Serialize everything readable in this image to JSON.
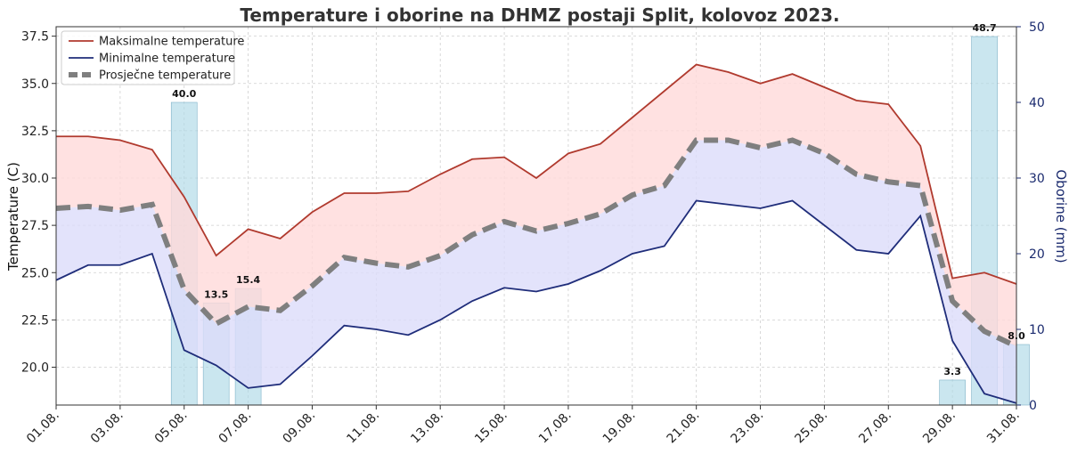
{
  "chart_data": {
    "type": "line",
    "title": "Temperature i oborine na DHMZ postaji Split, kolovoz 2023.",
    "ylabel": "Temperature (C)",
    "y2label": "Oborine (mm)",
    "ylim": [
      18.0,
      38.0
    ],
    "y2lim": [
      0,
      50
    ],
    "yticks": [
      20.0,
      22.5,
      25.0,
      27.5,
      30.0,
      32.5,
      35.0,
      37.5
    ],
    "yticks_labels": [
      "20.0",
      "22.5",
      "25.0",
      "27.5",
      "30.0",
      "32.5",
      "35.0",
      "37.5"
    ],
    "y2ticks": [
      0,
      10,
      20,
      30,
      40,
      50
    ],
    "y2ticks_labels": [
      "0",
      "10",
      "20",
      "30",
      "40",
      "50"
    ],
    "x": [
      1,
      2,
      3,
      4,
      5,
      6,
      7,
      8,
      9,
      10,
      11,
      12,
      13,
      14,
      15,
      16,
      17,
      18,
      19,
      20,
      21,
      22,
      23,
      24,
      25,
      26,
      27,
      28,
      29,
      30,
      31
    ],
    "xtick_values": [
      1,
      3,
      5,
      7,
      9,
      11,
      13,
      15,
      17,
      19,
      21,
      23,
      25,
      27,
      29,
      31
    ],
    "xtick_labels": [
      "01.08.",
      "03.08.",
      "05.08.",
      "07.08.",
      "09.08.",
      "11.08.",
      "13.08.",
      "15.08.",
      "17.08.",
      "19.08.",
      "21.08.",
      "23.08.",
      "25.08.",
      "27.08.",
      "29.08.",
      "31.08."
    ],
    "grid": true,
    "legend_position": "top-left",
    "series": [
      {
        "name": "Maksimalne temperature",
        "color": "#b03a2e",
        "values": [
          32.2,
          32.2,
          32.0,
          31.5,
          29.0,
          25.9,
          27.3,
          26.8,
          28.2,
          29.2,
          29.2,
          29.3,
          30.2,
          31.0,
          31.1,
          30.0,
          31.3,
          31.8,
          33.2,
          34.6,
          36.0,
          35.6,
          35.0,
          35.5,
          34.8,
          34.1,
          33.9,
          31.7,
          24.7,
          25.0,
          24.4
        ]
      },
      {
        "name": "Minimalne temperature",
        "color": "#1f2d7a",
        "values": [
          24.6,
          25.4,
          25.4,
          26.0,
          20.9,
          20.1,
          18.9,
          19.1,
          20.6,
          22.2,
          22.0,
          21.7,
          22.5,
          23.5,
          24.2,
          24.0,
          24.4,
          25.1,
          26.0,
          26.4,
          28.8,
          28.6,
          28.4,
          28.8,
          27.5,
          26.2,
          26.0,
          28.0,
          21.4,
          18.6,
          18.1
        ]
      },
      {
        "name": "Prosječne temperature",
        "color": "#7f7f7f",
        "values": [
          28.4,
          28.5,
          28.3,
          28.6,
          24.1,
          22.3,
          23.2,
          23.0,
          24.3,
          25.8,
          25.5,
          25.3,
          25.9,
          27.0,
          27.7,
          27.2,
          27.6,
          28.1,
          29.1,
          29.6,
          32.0,
          32.0,
          31.6,
          32.0,
          31.3,
          30.2,
          29.8,
          29.6,
          23.5,
          21.9,
          21.1
        ]
      }
    ],
    "precipitation": {
      "color": "#add8e6",
      "bars": [
        {
          "day": 5,
          "value": 40.0,
          "label": "40.0"
        },
        {
          "day": 6,
          "value": 13.5,
          "label": "13.5"
        },
        {
          "day": 7,
          "value": 15.4,
          "label": "15.4"
        },
        {
          "day": 29,
          "value": 3.3,
          "label": "3.3"
        },
        {
          "day": 30,
          "value": 48.7,
          "label": "48.7"
        },
        {
          "day": 31,
          "value": 8.0,
          "label": "8.0"
        }
      ]
    },
    "fill_colors": {
      "upper_band": "#ffd9d9",
      "lower_band": "#dcdcfa"
    }
  }
}
